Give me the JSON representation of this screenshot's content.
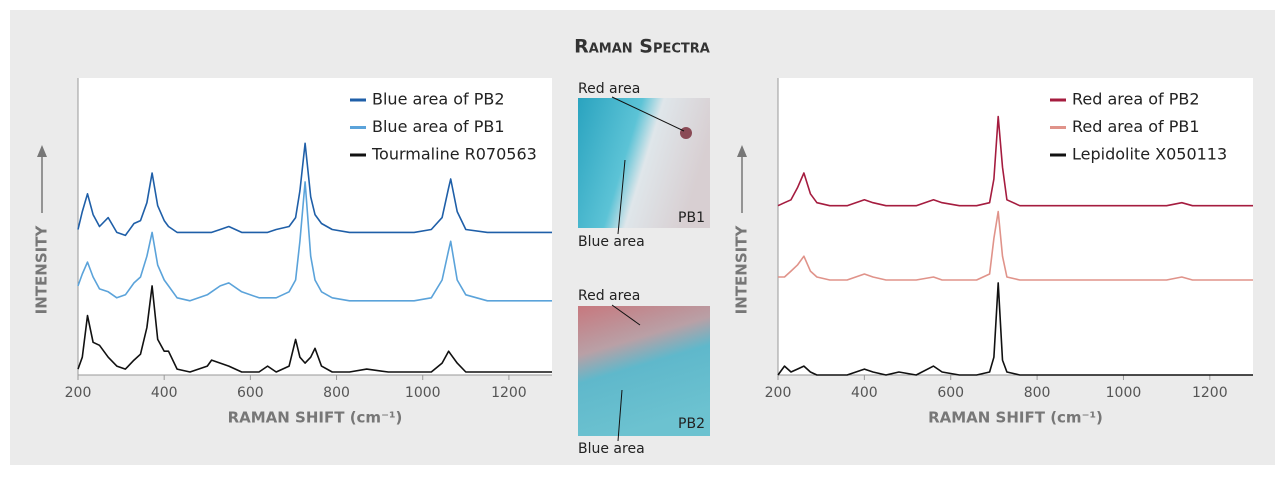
{
  "figure": {
    "title": "Raman Spectra",
    "images": [
      {
        "top_label": "Red area",
        "bottom_label": "Blue area",
        "sample": "PB1"
      },
      {
        "top_label": "Red area",
        "bottom_label": "Blue area",
        "sample": "PB2"
      }
    ]
  },
  "chart_data": [
    {
      "type": "line",
      "xlabel": "RAMAN SHIFT (cm⁻¹)",
      "ylabel": "INTENSITY",
      "legend": "upper right",
      "xlim": [
        200,
        1300
      ],
      "xticks": [
        200,
        400,
        600,
        800,
        1000,
        1200
      ],
      "ylim": [
        0,
        100
      ],
      "x": [
        200,
        210,
        222,
        235,
        250,
        270,
        290,
        310,
        330,
        345,
        360,
        372,
        385,
        400,
        410,
        430,
        460,
        500,
        510,
        530,
        550,
        580,
        620,
        640,
        660,
        690,
        705,
        715,
        727,
        740,
        750,
        765,
        790,
        830,
        870,
        920,
        980,
        1020,
        1045,
        1060,
        1065,
        1080,
        1100,
        1150,
        1200,
        1250,
        1300
      ],
      "series": [
        {
          "name": "Blue area of PB2",
          "color": "#1f5fa8",
          "values": [
            49,
            55,
            61,
            54,
            50,
            53,
            48,
            47,
            51,
            52,
            58,
            68,
            57,
            52,
            50,
            48,
            48,
            48,
            48,
            49,
            50,
            48,
            48,
            48,
            49,
            50,
            53,
            62,
            78,
            60,
            54,
            51,
            49,
            48,
            48,
            48,
            48,
            49,
            53,
            63,
            66,
            55,
            49,
            48,
            48,
            48,
            48
          ]
        },
        {
          "name": "Blue area of PB1",
          "color": "#5ba3da",
          "values": [
            30,
            34,
            38,
            33,
            29,
            28,
            26,
            27,
            31,
            33,
            40,
            48,
            37,
            32,
            30,
            26,
            25,
            27,
            28,
            30,
            31,
            28,
            26,
            26,
            26,
            28,
            32,
            45,
            65,
            40,
            32,
            28,
            26,
            25,
            25,
            25,
            25,
            26,
            32,
            42,
            45,
            32,
            27,
            25,
            25,
            25,
            25
          ]
        },
        {
          "name": "Tourmaline R070563",
          "color": "#111111",
          "values": [
            2,
            6,
            20,
            11,
            10,
            6,
            3,
            2,
            5,
            7,
            16,
            30,
            12,
            8,
            8,
            2,
            1,
            3,
            5,
            4,
            3,
            1,
            1,
            3,
            1,
            3,
            12,
            6,
            4,
            6,
            9,
            3,
            1,
            1,
            2,
            1,
            1,
            1,
            4,
            8,
            7,
            4,
            1,
            1,
            1,
            1,
            1
          ]
        }
      ]
    },
    {
      "type": "line",
      "xlabel": "RAMAN SHIFT (cm⁻¹)",
      "ylabel": "INTENSITY",
      "legend": "upper right",
      "xlim": [
        200,
        1300
      ],
      "xticks": [
        200,
        400,
        600,
        800,
        1000,
        1200
      ],
      "ylim": [
        0,
        100
      ],
      "x": [
        200,
        215,
        230,
        245,
        260,
        275,
        290,
        320,
        360,
        400,
        420,
        450,
        480,
        520,
        560,
        580,
        620,
        660,
        690,
        700,
        710,
        720,
        730,
        760,
        800,
        900,
        1000,
        1100,
        1135,
        1160,
        1200,
        1300
      ],
      "series": [
        {
          "name": "Red area of PB2",
          "color": "#a51c3f",
          "values": [
            57,
            58,
            59,
            63,
            68,
            61,
            58,
            57,
            57,
            59,
            58,
            57,
            57,
            57,
            59,
            58,
            57,
            57,
            58,
            66,
            87,
            70,
            59,
            57,
            57,
            57,
            57,
            57,
            58,
            57,
            57,
            57
          ]
        },
        {
          "name": "Red area of PB1",
          "color": "#e0938a",
          "values": [
            33,
            33,
            35,
            37,
            40,
            35,
            33,
            32,
            32,
            34,
            33,
            32,
            32,
            32,
            33,
            32,
            32,
            32,
            34,
            46,
            55,
            40,
            33,
            32,
            32,
            32,
            32,
            32,
            33,
            32,
            32,
            32
          ]
        },
        {
          "name": "Lepidolite X050113",
          "color": "#111111",
          "values": [
            0,
            3,
            1,
            2,
            3,
            1,
            0,
            0,
            0,
            2,
            1,
            0,
            1,
            0,
            3,
            1,
            0,
            0,
            1,
            6,
            31,
            5,
            1,
            0,
            0,
            0,
            0,
            0,
            0,
            0,
            0,
            0
          ]
        }
      ]
    }
  ]
}
